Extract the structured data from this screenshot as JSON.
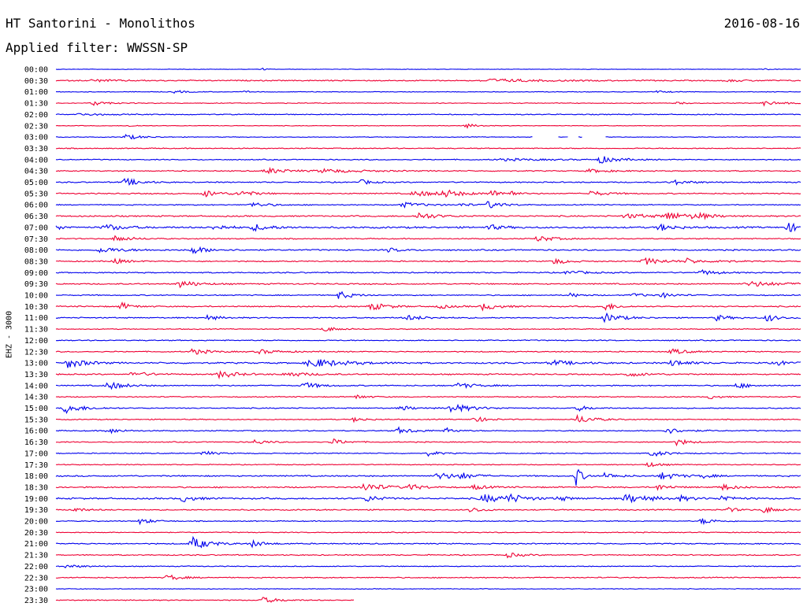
{
  "header": {
    "station": "HT Santorini - Monolithos",
    "date": "2016-08-16",
    "filter_label": "Applied filter: WWSSN-SP"
  },
  "channel_label": "EHZ - 3000",
  "colors": {
    "even_trace": "#0000ee",
    "odd_trace": "#ee0033",
    "text": "#000000"
  },
  "chart_data": {
    "type": "line",
    "plot_kind": "helicorder",
    "row_interval_minutes": 30,
    "channel": "EHZ - 3000",
    "x": {
      "unit": "minutes",
      "range": [
        0,
        30
      ]
    },
    "rows": [
      {
        "label": "00:00",
        "color": "blue",
        "noise": 0.25,
        "events": [
          {
            "t": 8.3,
            "amp": 1.5,
            "dur": 0.2
          },
          {
            "t": 28.5,
            "amp": 1.0,
            "dur": 0.3
          }
        ]
      },
      {
        "label": "00:30",
        "color": "red",
        "noise": 0.6,
        "events": [
          {
            "t": 1.5,
            "amp": 1.3,
            "dur": 1.2
          },
          {
            "t": 17.5,
            "amp": 1.8,
            "dur": 2.5
          },
          {
            "t": 27.0,
            "amp": 1.2,
            "dur": 1.0
          }
        ]
      },
      {
        "label": "01:00",
        "color": "blue",
        "noise": 0.35,
        "events": [
          {
            "t": 4.8,
            "amp": 2.0,
            "dur": 0.5
          },
          {
            "t": 7.6,
            "amp": 1.4,
            "dur": 0.3
          },
          {
            "t": 24.2,
            "amp": 1.4,
            "dur": 0.5
          }
        ]
      },
      {
        "label": "01:30",
        "color": "red",
        "noise": 0.4,
        "events": [
          {
            "t": 1.5,
            "amp": 3.0,
            "dur": 0.6
          },
          {
            "t": 25.0,
            "amp": 1.5,
            "dur": 0.4
          },
          {
            "t": 28.5,
            "amp": 2.5,
            "dur": 1.0
          }
        ]
      },
      {
        "label": "02:00",
        "color": "blue",
        "noise": 0.5,
        "events": [
          {
            "t": 1.0,
            "amp": 1.5,
            "dur": 1.0
          }
        ]
      },
      {
        "label": "02:30",
        "color": "red",
        "noise": 0.3,
        "events": [
          {
            "t": 2.9,
            "amp": 1.2,
            "dur": 0.4
          },
          {
            "t": 16.5,
            "amp": 2.5,
            "dur": 0.6
          }
        ]
      },
      {
        "label": "03:00",
        "color": "blue",
        "noise": 0.35,
        "events": [
          {
            "t": 2.8,
            "amp": 3.0,
            "dur": 0.8
          }
        ],
        "gaps": [
          [
            19.2,
            20.2
          ],
          [
            20.6,
            21.0
          ],
          [
            21.2,
            22.1
          ]
        ]
      },
      {
        "label": "03:30",
        "color": "red",
        "noise": 0.5,
        "events": []
      },
      {
        "label": "04:00",
        "color": "blue",
        "noise": 0.5,
        "events": [
          {
            "t": 21.9,
            "amp": 4.5,
            "dur": 0.8
          },
          {
            "t": 18.0,
            "amp": 1.2,
            "dur": 2.5
          }
        ]
      },
      {
        "label": "04:30",
        "color": "red",
        "noise": 0.55,
        "events": [
          {
            "t": 8.5,
            "amp": 3.5,
            "dur": 1.0
          },
          {
            "t": 10.8,
            "amp": 2.0,
            "dur": 2.0
          },
          {
            "t": 21.5,
            "amp": 2.0,
            "dur": 1.0
          }
        ]
      },
      {
        "label": "05:00",
        "color": "blue",
        "noise": 0.6,
        "events": [
          {
            "t": 2.8,
            "amp": 4.8,
            "dur": 0.7
          },
          {
            "t": 12.3,
            "amp": 3.0,
            "dur": 0.5
          },
          {
            "t": 24.8,
            "amp": 3.0,
            "dur": 0.8
          }
        ]
      },
      {
        "label": "05:30",
        "color": "red",
        "noise": 0.6,
        "events": [
          {
            "t": 6.0,
            "amp": 4.0,
            "dur": 0.8
          },
          {
            "t": 7.4,
            "amp": 3.5,
            "dur": 0.7
          },
          {
            "t": 14.5,
            "amp": 3.0,
            "dur": 1.5
          },
          {
            "t": 15.6,
            "amp": 4.0,
            "dur": 0.8
          },
          {
            "t": 17.5,
            "amp": 3.5,
            "dur": 0.7
          },
          {
            "t": 18.3,
            "amp": 6.0,
            "dur": 0.15
          },
          {
            "t": 21.5,
            "amp": 3.0,
            "dur": 0.8
          }
        ]
      },
      {
        "label": "06:00",
        "color": "blue",
        "noise": 0.5,
        "events": [
          {
            "t": 7.9,
            "amp": 3.0,
            "dur": 0.8
          },
          {
            "t": 14.0,
            "amp": 3.0,
            "dur": 1.0
          },
          {
            "t": 17.4,
            "amp": 4.5,
            "dur": 0.7
          },
          {
            "t": 16.3,
            "amp": 2.0,
            "dur": 0.5
          }
        ]
      },
      {
        "label": "06:30",
        "color": "red",
        "noise": 0.7,
        "events": [
          {
            "t": 14.6,
            "amp": 4.5,
            "dur": 0.8
          },
          {
            "t": 24.6,
            "amp": 5.0,
            "dur": 0.8
          },
          {
            "t": 25.7,
            "amp": 4.0,
            "dur": 0.7
          },
          {
            "t": 23.0,
            "amp": 2.5,
            "dur": 1.5
          }
        ]
      },
      {
        "label": "07:00",
        "color": "blue",
        "noise": 0.9,
        "events": [
          {
            "t": 0.0,
            "amp": 3.0,
            "dur": 0.4
          },
          {
            "t": 2.0,
            "amp": 4.0,
            "dur": 0.8
          },
          {
            "t": 6.4,
            "amp": 3.5,
            "dur": 0.6
          },
          {
            "t": 8.0,
            "amp": 4.0,
            "dur": 0.8
          },
          {
            "t": 17.4,
            "amp": 3.5,
            "dur": 0.6
          },
          {
            "t": 24.3,
            "amp": 4.0,
            "dur": 0.7
          },
          {
            "t": 29.5,
            "amp": 5.0,
            "dur": 1.0
          }
        ]
      },
      {
        "label": "07:30",
        "color": "red",
        "noise": 0.55,
        "events": [
          {
            "t": 2.4,
            "amp": 3.5,
            "dur": 0.8
          },
          {
            "t": 19.4,
            "amp": 3.5,
            "dur": 0.8
          }
        ]
      },
      {
        "label": "08:00",
        "color": "blue",
        "noise": 0.7,
        "events": [
          {
            "t": 1.8,
            "amp": 3.0,
            "dur": 1.2
          },
          {
            "t": 5.5,
            "amp": 4.5,
            "dur": 0.8
          },
          {
            "t": 13.4,
            "amp": 2.5,
            "dur": 0.6
          }
        ]
      },
      {
        "label": "08:30",
        "color": "red",
        "noise": 0.6,
        "events": [
          {
            "t": 2.3,
            "amp": 3.5,
            "dur": 0.6
          },
          {
            "t": 20.0,
            "amp": 4.0,
            "dur": 0.6
          },
          {
            "t": 23.7,
            "amp": 4.0,
            "dur": 1.0
          },
          {
            "t": 25.4,
            "amp": 3.0,
            "dur": 0.6
          },
          {
            "t": 26.7,
            "amp": 2.5,
            "dur": 0.5
          }
        ]
      },
      {
        "label": "09:00",
        "color": "blue",
        "noise": 0.6,
        "events": [
          {
            "t": 20.6,
            "amp": 2.5,
            "dur": 0.8
          },
          {
            "t": 26.0,
            "amp": 3.0,
            "dur": 0.8
          }
        ]
      },
      {
        "label": "09:30",
        "color": "red",
        "noise": 0.65,
        "events": [
          {
            "t": 5.0,
            "amp": 4.5,
            "dur": 0.8
          },
          {
            "t": 28.0,
            "amp": 3.0,
            "dur": 1.5
          }
        ]
      },
      {
        "label": "10:00",
        "color": "blue",
        "noise": 0.55,
        "events": [
          {
            "t": 11.4,
            "amp": 5.0,
            "dur": 0.6
          },
          {
            "t": 20.7,
            "amp": 2.5,
            "dur": 0.5
          },
          {
            "t": 23.2,
            "amp": 2.5,
            "dur": 0.6
          },
          {
            "t": 24.4,
            "amp": 3.0,
            "dur": 0.6
          }
        ]
      },
      {
        "label": "10:30",
        "color": "red",
        "noise": 0.65,
        "events": [
          {
            "t": 2.6,
            "amp": 5.0,
            "dur": 0.5
          },
          {
            "t": 12.7,
            "amp": 4.5,
            "dur": 0.8
          },
          {
            "t": 15.4,
            "amp": 2.5,
            "dur": 0.6
          },
          {
            "t": 17.2,
            "amp": 4.5,
            "dur": 0.7
          },
          {
            "t": 22.1,
            "amp": 5.0,
            "dur": 0.5
          }
        ]
      },
      {
        "label": "11:00",
        "color": "blue",
        "noise": 0.6,
        "events": [
          {
            "t": 6.1,
            "amp": 3.0,
            "dur": 0.6
          },
          {
            "t": 14.1,
            "amp": 3.0,
            "dur": 1.0
          },
          {
            "t": 22.1,
            "amp": 5.5,
            "dur": 0.8
          },
          {
            "t": 26.6,
            "amp": 3.5,
            "dur": 0.6
          },
          {
            "t": 28.6,
            "amp": 5.0,
            "dur": 0.5
          }
        ]
      },
      {
        "label": "11:30",
        "color": "red",
        "noise": 0.45,
        "events": [
          {
            "t": 10.8,
            "amp": 3.0,
            "dur": 0.7
          }
        ]
      },
      {
        "label": "12:00",
        "color": "blue",
        "noise": 0.55,
        "events": []
      },
      {
        "label": "12:30",
        "color": "red",
        "noise": 0.55,
        "events": [
          {
            "t": 5.5,
            "amp": 3.5,
            "dur": 0.8
          },
          {
            "t": 8.2,
            "amp": 2.5,
            "dur": 1.0
          },
          {
            "t": 24.8,
            "amp": 3.5,
            "dur": 0.7
          }
        ]
      },
      {
        "label": "13:00",
        "color": "blue",
        "noise": 0.8,
        "events": [
          {
            "t": 0.5,
            "amp": 6.0,
            "dur": 0.8
          },
          {
            "t": 10.3,
            "amp": 5.5,
            "dur": 1.5
          },
          {
            "t": 20.0,
            "amp": 3.0,
            "dur": 1.0
          },
          {
            "t": 24.8,
            "amp": 4.0,
            "dur": 0.7
          },
          {
            "t": 29.0,
            "amp": 3.0,
            "dur": 0.6
          }
        ]
      },
      {
        "label": "13:30",
        "color": "red",
        "noise": 0.65,
        "events": [
          {
            "t": 3.1,
            "amp": 3.0,
            "dur": 0.8
          },
          {
            "t": 6.6,
            "amp": 4.5,
            "dur": 0.8
          },
          {
            "t": 9.3,
            "amp": 3.0,
            "dur": 1.0
          },
          {
            "t": 23.0,
            "amp": 2.5,
            "dur": 1.0
          }
        ]
      },
      {
        "label": "14:00",
        "color": "blue",
        "noise": 0.6,
        "events": [
          {
            "t": 2.1,
            "amp": 5.0,
            "dur": 0.8
          },
          {
            "t": 10.0,
            "amp": 4.0,
            "dur": 0.7
          },
          {
            "t": 16.2,
            "amp": 3.5,
            "dur": 0.8
          },
          {
            "t": 27.4,
            "amp": 3.5,
            "dur": 0.6
          }
        ]
      },
      {
        "label": "14:30",
        "color": "red",
        "noise": 0.5,
        "events": [
          {
            "t": 12.1,
            "amp": 2.5,
            "dur": 0.5
          },
          {
            "t": 26.3,
            "amp": 2.5,
            "dur": 0.5
          }
        ]
      },
      {
        "label": "15:00",
        "color": "blue",
        "noise": 0.55,
        "events": [
          {
            "t": 0.4,
            "amp": 6.0,
            "dur": 0.8
          },
          {
            "t": 13.9,
            "amp": 3.0,
            "dur": 0.6
          },
          {
            "t": 15.9,
            "amp": 5.5,
            "dur": 1.0
          },
          {
            "t": 21.0,
            "amp": 3.5,
            "dur": 0.5
          }
        ]
      },
      {
        "label": "15:30",
        "color": "red",
        "noise": 0.5,
        "events": [
          {
            "t": 12.0,
            "amp": 2.5,
            "dur": 0.6
          },
          {
            "t": 16.8,
            "amp": 4.0,
            "dur": 0.6
          },
          {
            "t": 21.0,
            "amp": 5.0,
            "dur": 0.8
          }
        ]
      },
      {
        "label": "16:00",
        "color": "blue",
        "noise": 0.55,
        "events": [
          {
            "t": 2.1,
            "amp": 3.5,
            "dur": 0.6
          },
          {
            "t": 13.8,
            "amp": 3.5,
            "dur": 0.8
          },
          {
            "t": 15.7,
            "amp": 3.0,
            "dur": 0.5
          },
          {
            "t": 24.6,
            "amp": 3.5,
            "dur": 0.8
          }
        ]
      },
      {
        "label": "16:30",
        "color": "red",
        "noise": 0.5,
        "events": [
          {
            "t": 8.0,
            "amp": 3.0,
            "dur": 0.6
          },
          {
            "t": 11.1,
            "amp": 4.0,
            "dur": 0.6
          },
          {
            "t": 25.0,
            "amp": 4.0,
            "dur": 0.6
          }
        ]
      },
      {
        "label": "17:00",
        "color": "blue",
        "noise": 0.5,
        "events": [
          {
            "t": 5.9,
            "amp": 3.5,
            "dur": 0.5
          },
          {
            "t": 15.0,
            "amp": 3.0,
            "dur": 0.5
          },
          {
            "t": 24.0,
            "amp": 4.0,
            "dur": 0.7
          }
        ]
      },
      {
        "label": "17:30",
        "color": "red",
        "noise": 0.45,
        "events": [
          {
            "t": 23.8,
            "amp": 3.0,
            "dur": 0.6
          }
        ]
      },
      {
        "label": "18:00",
        "color": "blue",
        "noise": 0.7,
        "events": [
          {
            "t": 15.4,
            "amp": 4.5,
            "dur": 0.8
          },
          {
            "t": 16.3,
            "amp": 3.5,
            "dur": 0.6
          },
          {
            "t": 20.9,
            "amp": 14.0,
            "dur": 0.3
          },
          {
            "t": 22.1,
            "amp": 3.5,
            "dur": 0.6
          },
          {
            "t": 24.4,
            "amp": 4.5,
            "dur": 0.8
          },
          {
            "t": 26.0,
            "amp": 2.5,
            "dur": 0.5
          }
        ]
      },
      {
        "label": "18:30",
        "color": "red",
        "noise": 0.7,
        "events": [
          {
            "t": 12.4,
            "amp": 5.0,
            "dur": 1.0
          },
          {
            "t": 14.2,
            "amp": 3.5,
            "dur": 0.6
          },
          {
            "t": 16.8,
            "amp": 3.0,
            "dur": 0.6
          },
          {
            "t": 24.2,
            "amp": 3.5,
            "dur": 0.6
          },
          {
            "t": 26.8,
            "amp": 4.0,
            "dur": 0.6
          }
        ]
      },
      {
        "label": "19:00",
        "color": "blue",
        "noise": 0.8,
        "events": [
          {
            "t": 5.1,
            "amp": 4.0,
            "dur": 0.6
          },
          {
            "t": 12.5,
            "amp": 4.0,
            "dur": 0.6
          },
          {
            "t": 17.2,
            "amp": 5.0,
            "dur": 1.0
          },
          {
            "t": 18.2,
            "amp": 4.5,
            "dur": 0.8
          },
          {
            "t": 20.2,
            "amp": 3.0,
            "dur": 0.6
          },
          {
            "t": 23.0,
            "amp": 5.0,
            "dur": 1.2
          },
          {
            "t": 25.1,
            "amp": 3.0,
            "dur": 0.5
          },
          {
            "t": 26.8,
            "amp": 4.0,
            "dur": 0.6
          }
        ]
      },
      {
        "label": "19:30",
        "color": "red",
        "noise": 0.6,
        "events": [
          {
            "t": 0.6,
            "amp": 3.0,
            "dur": 0.6
          },
          {
            "t": 16.7,
            "amp": 3.5,
            "dur": 0.5
          },
          {
            "t": 27.0,
            "amp": 3.0,
            "dur": 0.5
          },
          {
            "t": 28.5,
            "amp": 4.0,
            "dur": 0.6
          }
        ]
      },
      {
        "label": "20:00",
        "color": "blue",
        "noise": 0.5,
        "events": [
          {
            "t": 3.4,
            "amp": 3.5,
            "dur": 0.6
          },
          {
            "t": 26.0,
            "amp": 4.0,
            "dur": 0.6
          }
        ]
      },
      {
        "label": "20:30",
        "color": "red",
        "noise": 0.45,
        "events": []
      },
      {
        "label": "21:00",
        "color": "blue",
        "noise": 0.6,
        "events": [
          {
            "t": 5.5,
            "amp": 8.0,
            "dur": 0.8
          },
          {
            "t": 7.9,
            "amp": 4.0,
            "dur": 0.6
          }
        ]
      },
      {
        "label": "21:30",
        "color": "red",
        "noise": 0.55,
        "events": [
          {
            "t": 18.2,
            "amp": 3.0,
            "dur": 0.6
          }
        ]
      },
      {
        "label": "22:00",
        "color": "blue",
        "noise": 0.45,
        "events": [
          {
            "t": 0.4,
            "amp": 2.0,
            "dur": 0.8
          }
        ]
      },
      {
        "label": "22:30",
        "color": "red",
        "noise": 0.55,
        "events": [
          {
            "t": 4.5,
            "amp": 4.0,
            "dur": 0.6
          }
        ]
      },
      {
        "label": "23:00",
        "color": "blue",
        "noise": 0.35,
        "events": []
      },
      {
        "label": "23:30",
        "color": "red",
        "noise": 0.5,
        "events": [
          {
            "t": 8.3,
            "amp": 3.5,
            "dur": 0.8
          }
        ],
        "end": 12.0
      }
    ]
  }
}
